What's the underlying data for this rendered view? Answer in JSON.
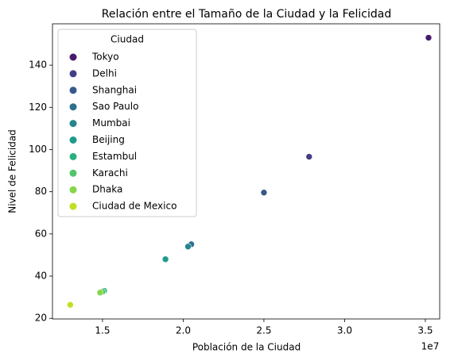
{
  "chart_data": {
    "type": "scatter",
    "title": "Relación entre el Tamaño de la Ciudad y la Felicidad",
    "xlabel": "Población de la Ciudad",
    "ylabel": "Nivel de Felicidad",
    "x_offset_label": "1e7",
    "legend_title": "Ciudad",
    "legend": "upper left",
    "xlim": [
      11900000,
      35890000
    ],
    "ylim": [
      19.7,
      159.6
    ],
    "xticks": [
      {
        "value": 15000000,
        "label": "1.5"
      },
      {
        "value": 20000000,
        "label": "2.0"
      },
      {
        "value": 25000000,
        "label": "2.5"
      },
      {
        "value": 30000000,
        "label": "3.0"
      },
      {
        "value": 35000000,
        "label": "3.5"
      }
    ],
    "yticks": [
      20,
      40,
      60,
      80,
      100,
      120,
      140
    ],
    "series": [
      {
        "name": "Tokyo",
        "color": "#481a6c",
        "x": [
          35200000
        ],
        "values": [
          153
        ]
      },
      {
        "name": "Delhi",
        "color": "#433e85",
        "x": [
          27800000
        ],
        "values": [
          96.6
        ]
      },
      {
        "name": "Shanghai",
        "color": "#38588c",
        "x": [
          25000000
        ],
        "values": [
          79.6
        ]
      },
      {
        "name": "Sao Paulo",
        "color": "#2d708e",
        "x": [
          20500000
        ],
        "values": [
          55.1
        ]
      },
      {
        "name": "Mumbai",
        "color": "#25858e",
        "x": [
          20300000
        ],
        "values": [
          54
        ]
      },
      {
        "name": "Beijing",
        "color": "#1e9b8a",
        "x": [
          18900000
        ],
        "values": [
          48
        ]
      },
      {
        "name": "Estambul",
        "color": "#2ab07f",
        "x": [
          15100000
        ],
        "values": [
          33
        ]
      },
      {
        "name": "Karachi",
        "color": "#52c569",
        "x": [
          15000000
        ],
        "values": [
          32.6
        ]
      },
      {
        "name": "Dhaka",
        "color": "#86d549",
        "x": [
          14850000
        ],
        "values": [
          32.2
        ]
      },
      {
        "name": "Ciudad de Mexico",
        "color": "#c2df23",
        "x": [
          13000000
        ],
        "values": [
          26.4
        ]
      }
    ]
  }
}
